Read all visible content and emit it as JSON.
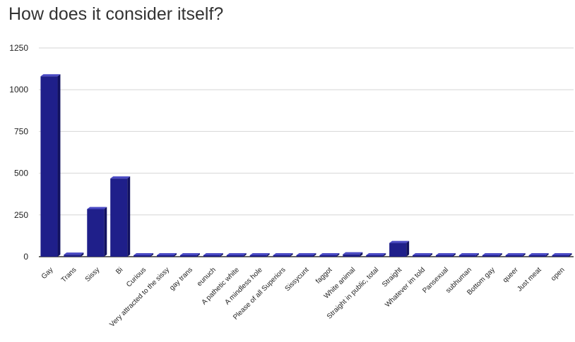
{
  "chart_data": {
    "type": "bar",
    "title": "How does it consider itself?",
    "xlabel": "",
    "ylabel": "",
    "ylim": [
      0,
      1250
    ],
    "yticks": [
      0,
      250,
      500,
      750,
      1000,
      1250
    ],
    "grid": true,
    "legend": "none",
    "categories": [
      "Gay",
      "Trans",
      "Sissy",
      "Bi",
      "Curious",
      "Very attracted to the sissy",
      "gay trans",
      "eunuch",
      "A pathetic white",
      "A mindless hole",
      "Please of all Superiors",
      "Sissycunt",
      "faggot",
      "White animal",
      "Straight in public, total",
      "Straight",
      "Whatever im told",
      "Pansexual",
      "subhuman",
      "Bottom gay",
      "queer",
      "Just meat",
      "open"
    ],
    "values": [
      1080,
      12,
      285,
      468,
      4,
      4,
      4,
      4,
      4,
      4,
      4,
      4,
      4,
      14,
      4,
      82,
      4,
      4,
      4,
      4,
      4,
      4,
      4
    ],
    "colors": {
      "bar_front": "#1f1f8a",
      "bar_top": "#4a4ac4",
      "bar_side": "#121260",
      "grid": "#d6d6d6",
      "baseline": "#333333"
    }
  }
}
